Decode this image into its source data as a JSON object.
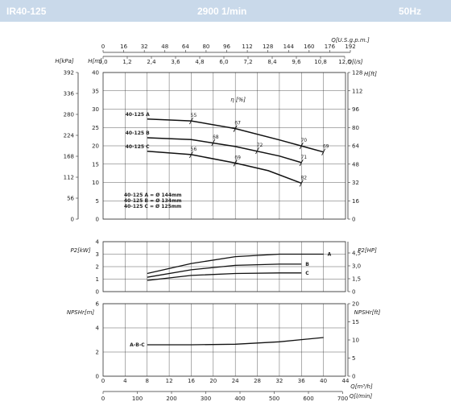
{
  "header": {
    "model": "IR40-125",
    "speed": "2900 1/min",
    "frequency": "50Hz"
  },
  "colors": {
    "header_bg": "#c9d9ea",
    "header_text": "#ffffff",
    "grid": "#333333",
    "curve": "#111111"
  },
  "axes": {
    "q_usgpm": {
      "label": "Q[U.S.g.p.m.]",
      "ticks": [
        "0",
        "16",
        "32",
        "48",
        "64",
        "80",
        "96",
        "112",
        "128",
        "144",
        "160",
        "176",
        "192"
      ]
    },
    "q_ls": {
      "label": "Q[l/s]",
      "ticks": [
        "0,0",
        "1,2",
        "2,4",
        "3,6",
        "4,8",
        "6,0",
        "7,2",
        "8,4",
        "9,6",
        "10,8",
        "12,0"
      ]
    },
    "q_m3h": {
      "label": "Q[m³/h]",
      "ticks": [
        "0",
        "4",
        "8",
        "12",
        "16",
        "20",
        "24",
        "28",
        "32",
        "36",
        "40",
        "44"
      ]
    },
    "q_lmin": {
      "label": "Q[l/min]",
      "ticks": [
        "0",
        "100",
        "200",
        "300",
        "400",
        "500",
        "600",
        "700"
      ]
    },
    "h_kpa": {
      "label": "H[kPa]",
      "ticks": [
        "392",
        "336",
        "280",
        "224",
        "168",
        "112",
        "56",
        "0"
      ]
    },
    "h_m": {
      "label": "H[m]",
      "ticks": [
        "40",
        "35",
        "30",
        "25",
        "20",
        "15",
        "10",
        "5",
        "0"
      ]
    },
    "h_ft": {
      "label": "H[ft]",
      "ticks": [
        "128",
        "112",
        "96",
        "80",
        "64",
        "48",
        "32",
        "16",
        "0"
      ]
    },
    "p2_kw": {
      "label": "P2[kW]",
      "ticks": [
        "4",
        "3",
        "2",
        "1",
        "0"
      ]
    },
    "p2_hp": {
      "label": "P2[HP]",
      "ticks": [
        "4,5",
        "3,0",
        "1,5",
        "0"
      ]
    },
    "npsh_m": {
      "label": "NPSHr[m]",
      "ticks": [
        "6",
        "4",
        "2",
        "0"
      ]
    },
    "npsh_ft": {
      "label": "NPSHr[ft]",
      "ticks": [
        "20",
        "15",
        "10",
        "5",
        "0"
      ]
    }
  },
  "eta_label": "η [%]",
  "impeller_legend": [
    "40-125 A = Ø 144mm",
    "40-125 B = Ø 134mm",
    "40-125 C = Ø 125mm"
  ],
  "chart_data": {
    "type": "line",
    "x_unit": "m³/h",
    "head": [
      {
        "name": "40-125 A",
        "x": [
          8,
          16,
          24,
          32,
          40
        ],
        "y": [
          27.3,
          26.8,
          24.7,
          21.6,
          18.3
        ]
      },
      {
        "name": "40-125 B",
        "x": [
          8,
          16,
          24,
          32,
          36
        ],
        "y": [
          22.2,
          21.7,
          19.8,
          17.2,
          15.4
        ]
      },
      {
        "name": "40-125 C",
        "x": [
          8,
          16,
          24,
          30,
          36
        ],
        "y": [
          18.5,
          17.6,
          15.3,
          13.2,
          9.8
        ]
      }
    ],
    "efficiency_labels": [
      {
        "label": "55",
        "x": 16,
        "y": 26.8
      },
      {
        "label": "67",
        "x": 24,
        "y": 24.7
      },
      {
        "label": "70",
        "x": 36,
        "y": 20.0
      },
      {
        "label": "69",
        "x": 40,
        "y": 18.3
      },
      {
        "label": "68",
        "x": 20,
        "y": 20.9
      },
      {
        "label": "72",
        "x": 28,
        "y": 18.7
      },
      {
        "label": "71",
        "x": 36,
        "y": 15.4
      },
      {
        "label": "56",
        "x": 16,
        "y": 17.6
      },
      {
        "label": "69",
        "x": 24,
        "y": 15.3
      },
      {
        "label": "82",
        "x": 36,
        "y": 9.8
      }
    ],
    "power": [
      {
        "name": "A",
        "x": [
          8,
          16,
          24,
          32,
          40
        ],
        "y": [
          1.45,
          2.25,
          2.8,
          3.0,
          3.0
        ]
      },
      {
        "name": "B",
        "x": [
          8,
          16,
          24,
          32,
          36
        ],
        "y": [
          1.15,
          1.75,
          2.1,
          2.2,
          2.2
        ]
      },
      {
        "name": "C",
        "x": [
          8,
          16,
          24,
          32,
          36
        ],
        "y": [
          0.9,
          1.3,
          1.45,
          1.5,
          1.5
        ]
      }
    ],
    "npshr": [
      {
        "name": "A-B-C",
        "x": [
          8,
          16,
          24,
          32,
          40
        ],
        "y": [
          2.6,
          2.6,
          2.65,
          2.85,
          3.2
        ]
      }
    ],
    "xlim": [
      0,
      44
    ],
    "head_ylim": [
      0,
      40
    ],
    "power_ylim": [
      0,
      4
    ],
    "npsh_ylim": [
      0,
      6
    ]
  }
}
